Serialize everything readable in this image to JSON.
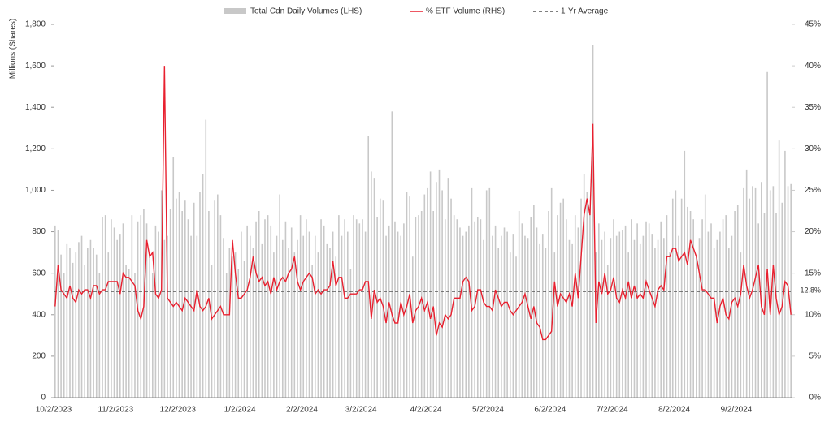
{
  "chart_data": {
    "type": "bar",
    "y_label": "Millions (Shares)",
    "categories": [
      "10/2/2023",
      null,
      null,
      null,
      null,
      null,
      null,
      null,
      null,
      null,
      null,
      null,
      null,
      null,
      null,
      null,
      null,
      null,
      null,
      null,
      null,
      "11/2/2023",
      null,
      null,
      null,
      null,
      null,
      null,
      null,
      null,
      null,
      null,
      null,
      null,
      null,
      null,
      null,
      null,
      null,
      null,
      null,
      null,
      "12/2/2023",
      null,
      null,
      null,
      null,
      null,
      null,
      null,
      null,
      null,
      null,
      null,
      null,
      null,
      null,
      null,
      null,
      null,
      null,
      null,
      null,
      "1/2/2024",
      null,
      null,
      null,
      null,
      null,
      null,
      null,
      null,
      null,
      null,
      null,
      null,
      null,
      null,
      null,
      null,
      null,
      null,
      null,
      null,
      "2/2/2024",
      null,
      null,
      null,
      null,
      null,
      null,
      null,
      null,
      null,
      null,
      null,
      null,
      null,
      null,
      null,
      null,
      null,
      null,
      null,
      "3/2/2024",
      null,
      null,
      null,
      null,
      null,
      null,
      null,
      null,
      null,
      null,
      null,
      null,
      null,
      null,
      null,
      null,
      null,
      null,
      null,
      null,
      null,
      "4/2/2024",
      null,
      null,
      null,
      null,
      null,
      null,
      null,
      null,
      null,
      null,
      null,
      null,
      null,
      null,
      null,
      null,
      null,
      null,
      null,
      null,
      "5/2/2024",
      null,
      null,
      null,
      null,
      null,
      null,
      null,
      null,
      null,
      null,
      null,
      null,
      null,
      null,
      null,
      null,
      null,
      null,
      null,
      null,
      "6/2/2024",
      null,
      null,
      null,
      null,
      null,
      null,
      null,
      null,
      null,
      null,
      null,
      null,
      null,
      null,
      null,
      null,
      null,
      null,
      null,
      null,
      "7/2/2024",
      null,
      null,
      null,
      null,
      null,
      null,
      null,
      null,
      null,
      null,
      null,
      null,
      null,
      null,
      null,
      null,
      null,
      null,
      null,
      null,
      "8/2/2024",
      null,
      null,
      null,
      null,
      null,
      null,
      null,
      null,
      null,
      null,
      null,
      null,
      null,
      null,
      null,
      null,
      null,
      null,
      null,
      null,
      "9/2/2024",
      null,
      null,
      null,
      null,
      null,
      null,
      null,
      null,
      null,
      null,
      null,
      null,
      null,
      null,
      null,
      null,
      null,
      null
    ],
    "series": [
      {
        "name": "Total Cdn Daily Volumes (LHS)",
        "type": "bar",
        "color": "#c8c8c8",
        "values": [
          830,
          810,
          690,
          600,
          740,
          720,
          650,
          700,
          750,
          780,
          640,
          720,
          760,
          720,
          690,
          600,
          870,
          880,
          700,
          860,
          820,
          760,
          790,
          840,
          640,
          620,
          880,
          600,
          850,
          880,
          910,
          840,
          700,
          600,
          830,
          800,
          1000,
          760,
          780,
          910,
          1160,
          960,
          990,
          900,
          950,
          860,
          780,
          940,
          780,
          990,
          1080,
          1340,
          900,
          640,
          950,
          980,
          880,
          770,
          600,
          720,
          680,
          700,
          620,
          800,
          660,
          830,
          780,
          720,
          850,
          900,
          740,
          860,
          880,
          830,
          700,
          780,
          980,
          760,
          850,
          720,
          820,
          700,
          760,
          880,
          780,
          860,
          800,
          640,
          780,
          700,
          860,
          830,
          740,
          720,
          800,
          680,
          880,
          780,
          860,
          800,
          620,
          880,
          860,
          840,
          860,
          800,
          1260,
          1090,
          1060,
          870,
          960,
          950,
          780,
          830,
          1380,
          850,
          800,
          780,
          840,
          990,
          970,
          680,
          870,
          880,
          900,
          980,
          1010,
          1090,
          900,
          1040,
          1100,
          1000,
          860,
          1060,
          960,
          880,
          860,
          820,
          780,
          800,
          830,
          1010,
          850,
          870,
          860,
          760,
          1000,
          1010,
          780,
          830,
          720,
          780,
          820,
          800,
          700,
          790,
          680,
          900,
          840,
          780,
          770,
          870,
          930,
          820,
          740,
          790,
          720,
          900,
          1010,
          700,
          880,
          940,
          960,
          860,
          760,
          740,
          880,
          820,
          960,
          1080,
          990,
          920,
          1700,
          700,
          840,
          760,
          800,
          640,
          770,
          860,
          780,
          800,
          810,
          830,
          700,
          860,
          760,
          840,
          740,
          780,
          850,
          840,
          790,
          720,
          760,
          850,
          770,
          880,
          700,
          960,
          1000,
          780,
          960,
          1190,
          920,
          900,
          860,
          680,
          770,
          860,
          980,
          800,
          840,
          720,
          760,
          800,
          860,
          880,
          720,
          780,
          900,
          930,
          700,
          1010,
          1100,
          960,
          1020,
          1010,
          840,
          1040,
          890,
          1570,
          1000,
          1020,
          890,
          1240,
          940,
          1190,
          1020,
          1030
        ]
      },
      {
        "name": "% ETF Volume (RHS)",
        "type": "line",
        "axis": "y2",
        "color": "#e8202f",
        "values": [
          11,
          16,
          13,
          12.5,
          12,
          13.5,
          12,
          11.5,
          13,
          12.5,
          13,
          13,
          12,
          13.5,
          13.5,
          12.5,
          13,
          13,
          14,
          14,
          14,
          14,
          12.5,
          15,
          14.5,
          14.5,
          14,
          13.5,
          10.5,
          9.5,
          11,
          19,
          17,
          17.5,
          12.5,
          12,
          13,
          40,
          12,
          11.5,
          11,
          11.5,
          11,
          10.5,
          12,
          11.5,
          11,
          10.5,
          13,
          11,
          10.5,
          11,
          12,
          9.5,
          10,
          10.5,
          11,
          10,
          10,
          10,
          19,
          15,
          12,
          12,
          12.5,
          13,
          14.5,
          17,
          15,
          14,
          14.5,
          13.5,
          14,
          12.5,
          14.5,
          13,
          14,
          14.5,
          14,
          15,
          15.5,
          17,
          14,
          13,
          14,
          14.5,
          15,
          14.5,
          12.5,
          13,
          12.5,
          13,
          13,
          13.5,
          16.5,
          13.5,
          14.5,
          14.5,
          12,
          12,
          12.5,
          12.5,
          12.5,
          13,
          13,
          14,
          14,
          9.5,
          13,
          11.5,
          12,
          11,
          9,
          11.5,
          10,
          9,
          9,
          11.5,
          10,
          11,
          12.5,
          9,
          10.5,
          11,
          12,
          10.5,
          11.5,
          9.5,
          11,
          7.5,
          9,
          8.5,
          10,
          9.5,
          10,
          12,
          12,
          12,
          14,
          14.5,
          14,
          10.5,
          11,
          13,
          13,
          11.5,
          11,
          11,
          10.5,
          13,
          12,
          11,
          11.5,
          11.5,
          10.5,
          10,
          10.5,
          11,
          11.5,
          12.5,
          11,
          9.5,
          11,
          9,
          8.5,
          7,
          7,
          7.5,
          8,
          14,
          11,
          12.5,
          12,
          11.5,
          12.5,
          11,
          15,
          12,
          17,
          22,
          24,
          22,
          33,
          9,
          14,
          12.5,
          15,
          12.5,
          13,
          14.5,
          12,
          11.5,
          13,
          12,
          14,
          12,
          13.5,
          12,
          12.5,
          12,
          14,
          13,
          12,
          11,
          13,
          13.5,
          13,
          17,
          17,
          18,
          18,
          16.5,
          17,
          17.5,
          16,
          19,
          18,
          17,
          15,
          13,
          13,
          12.5,
          12,
          12,
          9,
          11,
          12,
          10,
          9.5,
          11.5,
          12,
          11,
          12.5,
          16,
          13.5,
          12,
          13,
          14.5,
          16,
          11,
          10,
          15.5,
          10,
          16,
          12,
          10,
          11,
          14,
          13.5,
          10
        ]
      }
    ],
    "average": {
      "name": "1-Yr Average",
      "value": 12.8,
      "label": "12.8%",
      "color": "#555555",
      "axis": "y2"
    },
    "ylim": [
      0,
      1800
    ],
    "yticks": [
      0,
      200,
      400,
      600,
      800,
      {
        "value": 1000,
        "label": "1,000"
      },
      {
        "value": 1200,
        "label": "1,200"
      },
      {
        "value": 1400,
        "label": "1,400"
      },
      {
        "value": 1600,
        "label": "1,600"
      },
      {
        "value": 1800,
        "label": "1,800"
      }
    ],
    "y2lim": [
      0,
      45
    ],
    "y2ticks": [
      {
        "value": 0,
        "label": "0%"
      },
      {
        "value": 5,
        "label": "5%"
      },
      {
        "value": 10,
        "label": "10%"
      },
      {
        "value": 15,
        "label": "15%"
      },
      {
        "value": 20,
        "label": "20%"
      },
      {
        "value": 25,
        "label": "25%"
      },
      {
        "value": 30,
        "label": "30%"
      },
      {
        "value": 35,
        "label": "35%"
      },
      {
        "value": 40,
        "label": "40%"
      },
      {
        "value": 45,
        "label": "45%"
      }
    ]
  }
}
